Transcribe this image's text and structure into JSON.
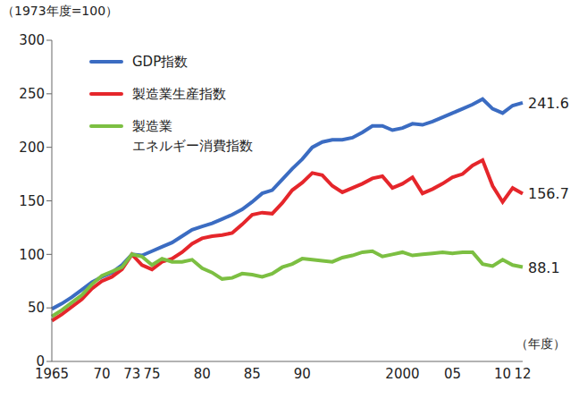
{
  "chart_data": {
    "type": "line",
    "subtitle": "（1973年度=100）",
    "x_label": "（年度）",
    "categories": [
      "1965",
      null,
      null,
      null,
      null,
      "70",
      null,
      null,
      "73",
      null,
      "75",
      null,
      null,
      null,
      null,
      "80",
      null,
      null,
      null,
      null,
      "85",
      null,
      null,
      null,
      null,
      "90",
      null,
      null,
      null,
      null,
      null,
      null,
      null,
      null,
      null,
      "2000",
      null,
      null,
      null,
      null,
      "05",
      null,
      null,
      null,
      null,
      "10",
      null,
      "12"
    ],
    "series": [
      {
        "name": "GDP指数",
        "color": "#3b6cc2",
        "values": [
          49,
          54,
          60,
          67,
          74,
          79,
          83,
          90,
          100,
          99,
          103,
          107,
          111,
          117,
          123,
          126,
          129,
          133,
          137,
          142,
          149,
          157,
          160,
          170,
          180,
          189,
          200,
          205,
          207,
          207,
          209,
          214,
          220,
          220,
          216,
          218,
          222,
          221,
          224,
          228,
          232,
          236,
          240,
          245,
          236,
          232,
          239,
          241.6
        ]
      },
      {
        "name": "製造業生産指数",
        "color": "#e5262b",
        "values": [
          38,
          44,
          51,
          58,
          68,
          75,
          79,
          86,
          100,
          90,
          86,
          93,
          96,
          102,
          110,
          115,
          117,
          118,
          120,
          128,
          137,
          139,
          138,
          148,
          160,
          167,
          176,
          174,
          164,
          158,
          162,
          166,
          171,
          173,
          162,
          166,
          172,
          157,
          161,
          166,
          172,
          175,
          183,
          188,
          164,
          149,
          162,
          156.7
        ]
      },
      {
        "name": "製造業\nエネルギー消費指数",
        "color": "#7cbf42",
        "values": [
          42,
          48,
          55,
          62,
          72,
          80,
          84,
          88,
          100,
          98,
          90,
          96,
          93,
          93,
          95,
          87,
          83,
          77,
          78,
          82,
          81,
          79,
          82,
          88,
          91,
          96,
          95,
          94,
          93,
          97,
          99,
          102,
          103,
          98,
          100,
          102,
          99,
          100,
          101,
          102,
          101,
          102,
          102,
          91,
          89,
          95,
          90,
          88.1
        ]
      }
    ],
    "annotations": [
      "241.6",
      "156.7",
      "88.1"
    ],
    "ylim": [
      0,
      300
    ],
    "yticks": [
      0,
      50,
      100,
      150,
      200,
      250,
      300
    ],
    "grid": false,
    "legend": "top-left"
  }
}
